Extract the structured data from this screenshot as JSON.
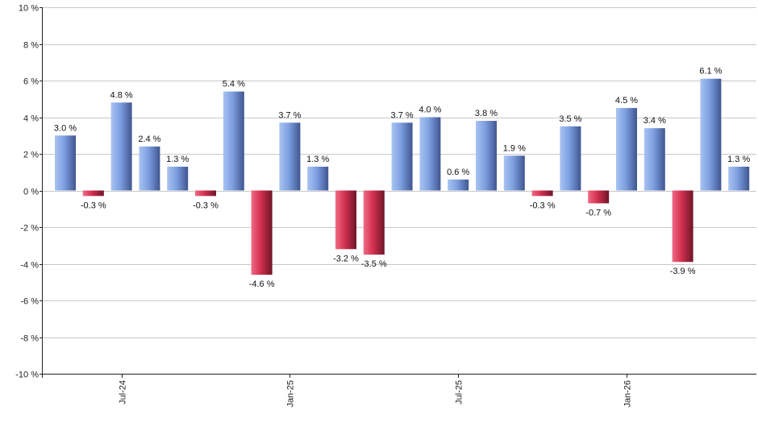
{
  "chart_data": {
    "type": "bar",
    "title": "",
    "xlabel": "",
    "ylabel": "",
    "ylim": [
      -10,
      10
    ],
    "yticks": [
      10,
      8,
      6,
      4,
      2,
      0,
      -2,
      -4,
      -6,
      -8,
      -10
    ],
    "ytick_labels": [
      "10 %",
      "8 %",
      "6 %",
      "4 %",
      "2 %",
      "0 %",
      "-2 %",
      "-4 %",
      "-6 %",
      "-8 %",
      "-10 %"
    ],
    "grid": true,
    "legend": "none",
    "x_ticks": [
      {
        "label": "Jul-24",
        "index": 2
      },
      {
        "label": "Jan-25",
        "index": 8
      },
      {
        "label": "Jul-25",
        "index": 14
      },
      {
        "label": "Jan-26",
        "index": 20
      }
    ],
    "values": [
      3.0,
      -0.3,
      4.8,
      2.4,
      1.3,
      -0.3,
      5.4,
      -4.6,
      3.7,
      1.3,
      -3.2,
      -3.5,
      3.7,
      4.0,
      0.6,
      3.8,
      1.9,
      -0.3,
      3.5,
      -0.7,
      4.5,
      3.4,
      -3.9,
      6.1,
      1.3
    ],
    "data_labels": [
      "3.0 %",
      "-0.3 %",
      "4.8 %",
      "2.4 %",
      "1.3 %",
      "-0.3 %",
      "5.4 %",
      "-4.6 %",
      "3.7 %",
      "1.3 %",
      "-3.2 %",
      "-3.5 %",
      "3.7 %",
      "4.0 %",
      "0.6 %",
      "3.8 %",
      "1.9 %",
      "-0.3 %",
      "3.5 %",
      "-0.7 %",
      "4.5 %",
      "3.4 %",
      "-3.9 %",
      "6.1 %",
      "1.3 %"
    ],
    "colors": {
      "positive_light": "#a9c4f2",
      "positive_mid": "#7d9ee0",
      "positive_dark": "#3f5690",
      "negative_light": "#f06a84",
      "negative_mid": "#d1304f",
      "negative_dark": "#6e1528"
    }
  }
}
